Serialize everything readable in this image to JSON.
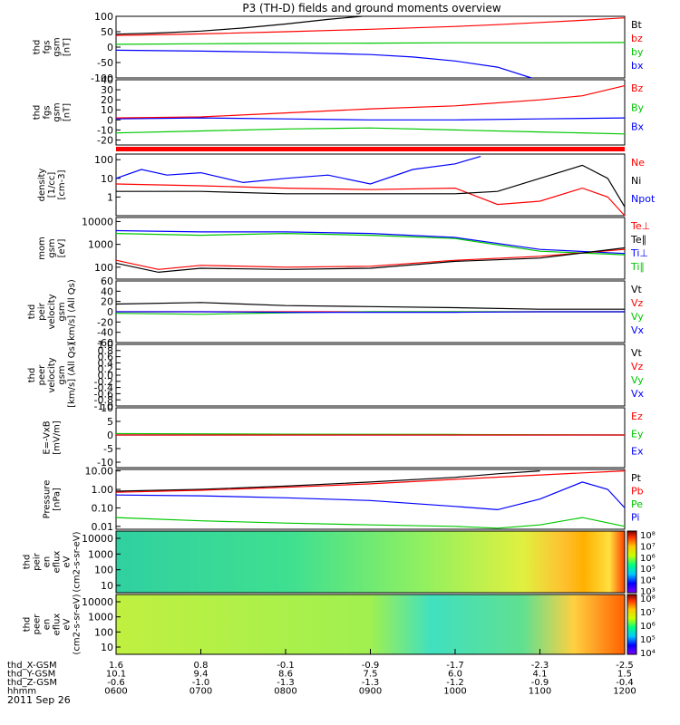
{
  "chart_data": {
    "type": "line",
    "title": "P3 (TH-D) fields and ground moments overview",
    "date_label": "2011 Sep 26",
    "x_ticks": [
      "0600",
      "0700",
      "0800",
      "0900",
      "1000",
      "1100",
      "1200"
    ],
    "ephemeris": [
      {
        "label": "thd_X-GSM",
        "values": [
          "1.6",
          "0.8",
          "-0.1",
          "-0.9",
          "-1.7",
          "-2.3",
          "-2.5"
        ]
      },
      {
        "label": "thd_Y-GSM",
        "values": [
          "10.1",
          "9.4",
          "8.6",
          "7.5",
          "6.0",
          "4.1",
          "1.5"
        ]
      },
      {
        "label": "thd_Z-GSM",
        "values": [
          "-0.6",
          "-1.0",
          "-1.3",
          "-1.3",
          "-1.2",
          "-0.9",
          "-0.4"
        ]
      },
      {
        "label": "hhmm",
        "values": [
          "0600",
          "0700",
          "0800",
          "0900",
          "1000",
          "1100",
          "1200"
        ]
      }
    ],
    "panels": [
      {
        "ylabel": [
          "thd",
          "fgs",
          "gsm",
          "[nT]"
        ],
        "scale": "linear",
        "ylim": [
          -100,
          100
        ],
        "ticks": [
          "100",
          "50",
          "0",
          "-50",
          "-100"
        ],
        "legend": [
          {
            "name": "Bt",
            "color": "#000000"
          },
          {
            "name": "bz",
            "color": "#ff0000"
          },
          {
            "name": "by",
            "color": "#00c800"
          },
          {
            "name": "bx",
            "color": "#0000ff"
          }
        ],
        "series": [
          {
            "name": "Bt",
            "color": "#000000",
            "x": [
              6.0,
              6.5,
              7.0,
              7.5,
              8.0,
              8.5,
              8.9
            ],
            "y": [
              42,
              46,
              52,
              62,
              75,
              90,
              100
            ]
          },
          {
            "name": "bz",
            "color": "#ff0000",
            "x": [
              6.0,
              7.0,
              8.0,
              9.0,
              10.0,
              10.5,
              11.0,
              11.5,
              12.0
            ],
            "y": [
              38,
              43,
              50,
              58,
              67,
              73,
              80,
              87,
              95
            ]
          },
          {
            "name": "by",
            "color": "#00c800",
            "x": [
              6.0,
              7.0,
              8.0,
              9.0,
              10.0,
              11.0,
              12.0
            ],
            "y": [
              9,
              11,
              12,
              13,
              14,
              14,
              15
            ]
          },
          {
            "name": "bx",
            "color": "#0000ff",
            "x": [
              6.0,
              7.0,
              8.0,
              9.0,
              9.5,
              10.0,
              10.5,
              10.9
            ],
            "y": [
              -10,
              -13,
              -17,
              -24,
              -32,
              -45,
              -65,
              -100
            ]
          }
        ]
      },
      {
        "ylabel": [
          "thd",
          "fgs",
          "gsm",
          "[nT]"
        ],
        "scale": "linear",
        "ylim": [
          -25,
          40
        ],
        "ticks": [
          "40",
          "30",
          "20",
          "10",
          "0",
          "-10",
          "-20"
        ],
        "legend": [
          {
            "name": "Bz",
            "color": "#ff0000"
          },
          {
            "name": "By",
            "color": "#00c800"
          },
          {
            "name": "Bx",
            "color": "#0000ff"
          }
        ],
        "series": [
          {
            "name": "Bz",
            "color": "#ff0000",
            "x": [
              6.0,
              7.0,
              8.0,
              9.0,
              10.0,
              11.0,
              11.5,
              12.0
            ],
            "y": [
              2,
              3,
              7,
              11,
              14,
              20,
              24,
              34
            ]
          },
          {
            "name": "By",
            "color": "#00c800",
            "x": [
              6.0,
              7.0,
              8.0,
              9.0,
              10.0,
              11.0,
              12.0
            ],
            "y": [
              -13,
              -11,
              -9,
              -8,
              -10,
              -12,
              -14
            ]
          },
          {
            "name": "Bx",
            "color": "#0000ff",
            "x": [
              6.0,
              7.0,
              8.0,
              9.0,
              10.0,
              11.0,
              12.0
            ],
            "y": [
              1,
              2,
              1,
              0,
              0,
              1,
              2
            ]
          }
        ]
      },
      {
        "ylabel": [
          "density",
          "[1/cc]",
          "[cm-3]"
        ],
        "scale": "log",
        "ylim": [
          0.1,
          200
        ],
        "ticks": [
          "100",
          "10",
          "1"
        ],
        "legend": [
          {
            "name": "Ne",
            "color": "#ff0000"
          },
          {
            "name": "Ni",
            "color": "#000000"
          },
          {
            "name": "Npot",
            "color": "#0000ff"
          }
        ],
        "series": [
          {
            "name": "Npot",
            "color": "#0000ff",
            "x": [
              6.0,
              6.3,
              6.6,
              7.0,
              7.5,
              8.0,
              8.5,
              9.0,
              9.5,
              10.0,
              10.3
            ],
            "y": [
              10,
              30,
              15,
              20,
              6,
              10,
              15,
              5,
              30,
              60,
              150
            ]
          },
          {
            "name": "Ne",
            "color": "#ff0000",
            "x": [
              6.0,
              7.0,
              8.0,
              9.0,
              10.0,
              10.5,
              11.0,
              11.5,
              11.8,
              12.0
            ],
            "y": [
              5,
              4,
              3,
              2.5,
              3,
              0.4,
              0.6,
              3,
              1,
              0.1
            ]
          },
          {
            "name": "Ni",
            "color": "#000000",
            "x": [
              6.0,
              7.0,
              8.0,
              9.0,
              10.0,
              10.5,
              11.0,
              11.5,
              11.8,
              12.0
            ],
            "y": [
              2,
              2,
              1.5,
              1.5,
              1.5,
              2,
              10,
              50,
              10,
              0.3
            ]
          }
        ]
      },
      {
        "ylabel": [
          "mom",
          "gsm",
          "[eV]"
        ],
        "scale": "log",
        "ylim": [
          30,
          15000
        ],
        "ticks": [
          "10000",
          "1000",
          "100"
        ],
        "legend": [
          {
            "name": "Te⊥",
            "color": "#ff0000"
          },
          {
            "name": "Te∥",
            "color": "#000000"
          },
          {
            "name": "Ti⊥",
            "color": "#0000ff"
          },
          {
            "name": "Ti∥",
            "color": "#00c800"
          }
        ],
        "series": [
          {
            "name": "Ti⊥",
            "color": "#0000ff",
            "x": [
              6.0,
              7.0,
              8.0,
              9.0,
              10.0,
              11.0,
              12.0
            ],
            "y": [
              4000,
              3500,
              3500,
              3000,
              2000,
              600,
              400
            ]
          },
          {
            "name": "Ti∥",
            "color": "#00c800",
            "x": [
              6.0,
              7.0,
              8.0,
              9.0,
              10.0,
              11.0,
              12.0
            ],
            "y": [
              3000,
              2500,
              3000,
              2500,
              1800,
              500,
              350
            ]
          },
          {
            "name": "Te⊥",
            "color": "#ff0000",
            "x": [
              6.0,
              6.5,
              7.0,
              8.0,
              9.0,
              10.0,
              11.0,
              12.0
            ],
            "y": [
              200,
              80,
              120,
              100,
              110,
              200,
              300,
              600
            ]
          },
          {
            "name": "Te∥",
            "color": "#000000",
            "x": [
              6.0,
              6.5,
              7.0,
              8.0,
              9.0,
              10.0,
              11.0,
              12.0
            ],
            "y": [
              150,
              60,
              90,
              80,
              90,
              180,
              250,
              700
            ]
          }
        ]
      },
      {
        "ylabel": [
          "thd",
          "peir",
          "velocity",
          "gsm",
          "[km/s] (All Qs)"
        ],
        "scale": "linear",
        "ylim": [
          -60,
          60
        ],
        "ticks": [
          "60",
          "40",
          "20",
          "0",
          "-20",
          "-40",
          "-60"
        ],
        "legend": [
          {
            "name": "Vt",
            "color": "#000000"
          },
          {
            "name": "Vz",
            "color": "#ff0000"
          },
          {
            "name": "Vy",
            "color": "#00c800"
          },
          {
            "name": "Vx",
            "color": "#0000ff"
          }
        ],
        "series": [
          {
            "name": "Vt",
            "color": "#000000",
            "x": [
              6.0,
              7.0,
              8.0,
              9.0,
              10.0,
              11.0,
              12.0
            ],
            "y": [
              15,
              18,
              12,
              10,
              8,
              5,
              5
            ]
          },
          {
            "name": "Vz",
            "color": "#ff0000",
            "x": [
              6.0,
              7.0,
              8.0,
              9.0,
              10.0,
              11.0,
              12.0
            ],
            "y": [
              0,
              0,
              0,
              0,
              0,
              0,
              0
            ]
          },
          {
            "name": "Vy",
            "color": "#00c800",
            "x": [
              6.0,
              7.0,
              8.0,
              9.0,
              10.0,
              11.0,
              12.0
            ],
            "y": [
              -3,
              -5,
              -2,
              0,
              0,
              0,
              0
            ]
          },
          {
            "name": "Vx",
            "color": "#0000ff",
            "x": [
              6.0,
              7.0,
              8.0,
              9.0,
              10.0,
              11.0,
              12.0
            ],
            "y": [
              0,
              0,
              -1,
              -1,
              -1,
              0,
              0
            ]
          }
        ]
      },
      {
        "ylabel": [
          "thd",
          "peer",
          "velocity",
          "gsm",
          "[km/s] (All Qs)"
        ],
        "scale": "linear",
        "ylim": [
          -1,
          1
        ],
        "ticks": [
          "1.0",
          "0.8",
          "0.6",
          "0.4",
          "0.2",
          "0.0",
          "-0.2",
          "-0.4",
          "-0.6",
          "-0.8",
          "-1.0"
        ],
        "legend": [
          {
            "name": "Vt",
            "color": "#000000"
          },
          {
            "name": "Vz",
            "color": "#ff0000"
          },
          {
            "name": "Vy",
            "color": "#00c800"
          },
          {
            "name": "Vx",
            "color": "#0000ff"
          }
        ],
        "series": []
      },
      {
        "ylabel": [
          "E=-VxB",
          "[mV/m]"
        ],
        "scale": "linear",
        "ylim": [
          -12,
          10
        ],
        "ticks": [
          "10",
          "5",
          "0",
          "-5",
          "-10"
        ],
        "legend": [
          {
            "name": "Ez",
            "color": "#ff0000"
          },
          {
            "name": "Ey",
            "color": "#00c800"
          },
          {
            "name": "Ex",
            "color": "#0000ff"
          }
        ],
        "series": [
          {
            "name": "Ex",
            "color": "#0000ff",
            "x": [
              6.0,
              8.0,
              10.0,
              12.0
            ],
            "y": [
              0,
              0,
              0,
              0
            ]
          },
          {
            "name": "Ey",
            "color": "#00c800",
            "x": [
              6.0,
              8.0,
              10.0,
              12.0
            ],
            "y": [
              0.5,
              0.3,
              0.2,
              0
            ]
          },
          {
            "name": "Ez",
            "color": "#ff0000",
            "x": [
              6.0,
              8.0,
              10.0,
              12.0
            ],
            "y": [
              0,
              0,
              0,
              0
            ]
          }
        ]
      },
      {
        "ylabel": [
          "Pressure",
          "[nPa]"
        ],
        "scale": "log",
        "ylim": [
          0.007,
          12
        ],
        "ticks": [
          "10.00",
          "1.00",
          "0.10",
          "0.01"
        ],
        "legend": [
          {
            "name": "Pt",
            "color": "#000000"
          },
          {
            "name": "Pb",
            "color": "#ff0000"
          },
          {
            "name": "Pe",
            "color": "#00c800"
          },
          {
            "name": "Pi",
            "color": "#0000ff"
          }
        ],
        "series": [
          {
            "name": "Pt",
            "color": "#000000",
            "x": [
              6.0,
              7.0,
              8.0,
              9.0,
              10.0,
              10.5,
              11.0
            ],
            "y": [
              0.8,
              1.0,
              1.5,
              2.5,
              4.5,
              7,
              10
            ]
          },
          {
            "name": "Pb",
            "color": "#ff0000",
            "x": [
              6.0,
              7.0,
              8.0,
              9.0,
              10.0,
              11.0,
              12.0
            ],
            "y": [
              0.7,
              0.9,
              1.3,
              2,
              3.5,
              6,
              10
            ]
          },
          {
            "name": "Pi",
            "color": "#0000ff",
            "x": [
              6.0,
              7.0,
              8.0,
              9.0,
              10.0,
              10.5,
              11.0,
              11.5,
              11.8,
              12.0
            ],
            "y": [
              0.5,
              0.45,
              0.35,
              0.25,
              0.12,
              0.08,
              0.3,
              2.5,
              1,
              0.1
            ]
          },
          {
            "name": "Pe",
            "color": "#00c800",
            "x": [
              6.0,
              7.0,
              8.0,
              9.0,
              10.0,
              10.5,
              11.0,
              11.5,
              12.0
            ],
            "y": [
              0.03,
              0.02,
              0.015,
              0.012,
              0.01,
              0.008,
              0.012,
              0.03,
              0.01
            ]
          }
        ]
      },
      {
        "ylabel": [
          "thd",
          "peir",
          "en",
          "eflux",
          "eV",
          "(cm2-s-sr-eV)"
        ],
        "scale": "spectrogram",
        "ticks": [
          "10000",
          "1000",
          "100",
          "10"
        ],
        "colorbar_ticks": [
          "10⁸",
          "10⁷",
          "10⁶",
          "10⁵",
          "10⁴",
          "10³"
        ],
        "legend": [],
        "series": []
      },
      {
        "ylabel": [
          "thd",
          "peer",
          "en",
          "eflux",
          "eV",
          "(cm2-s-sr-eV)"
        ],
        "scale": "spectrogram",
        "ticks": [
          "10000",
          "1000",
          "100",
          "10"
        ],
        "colorbar_ticks": [
          "10⁸",
          "10⁷",
          "10⁶",
          "10⁵",
          "10⁴"
        ],
        "legend": [],
        "series": []
      }
    ]
  }
}
